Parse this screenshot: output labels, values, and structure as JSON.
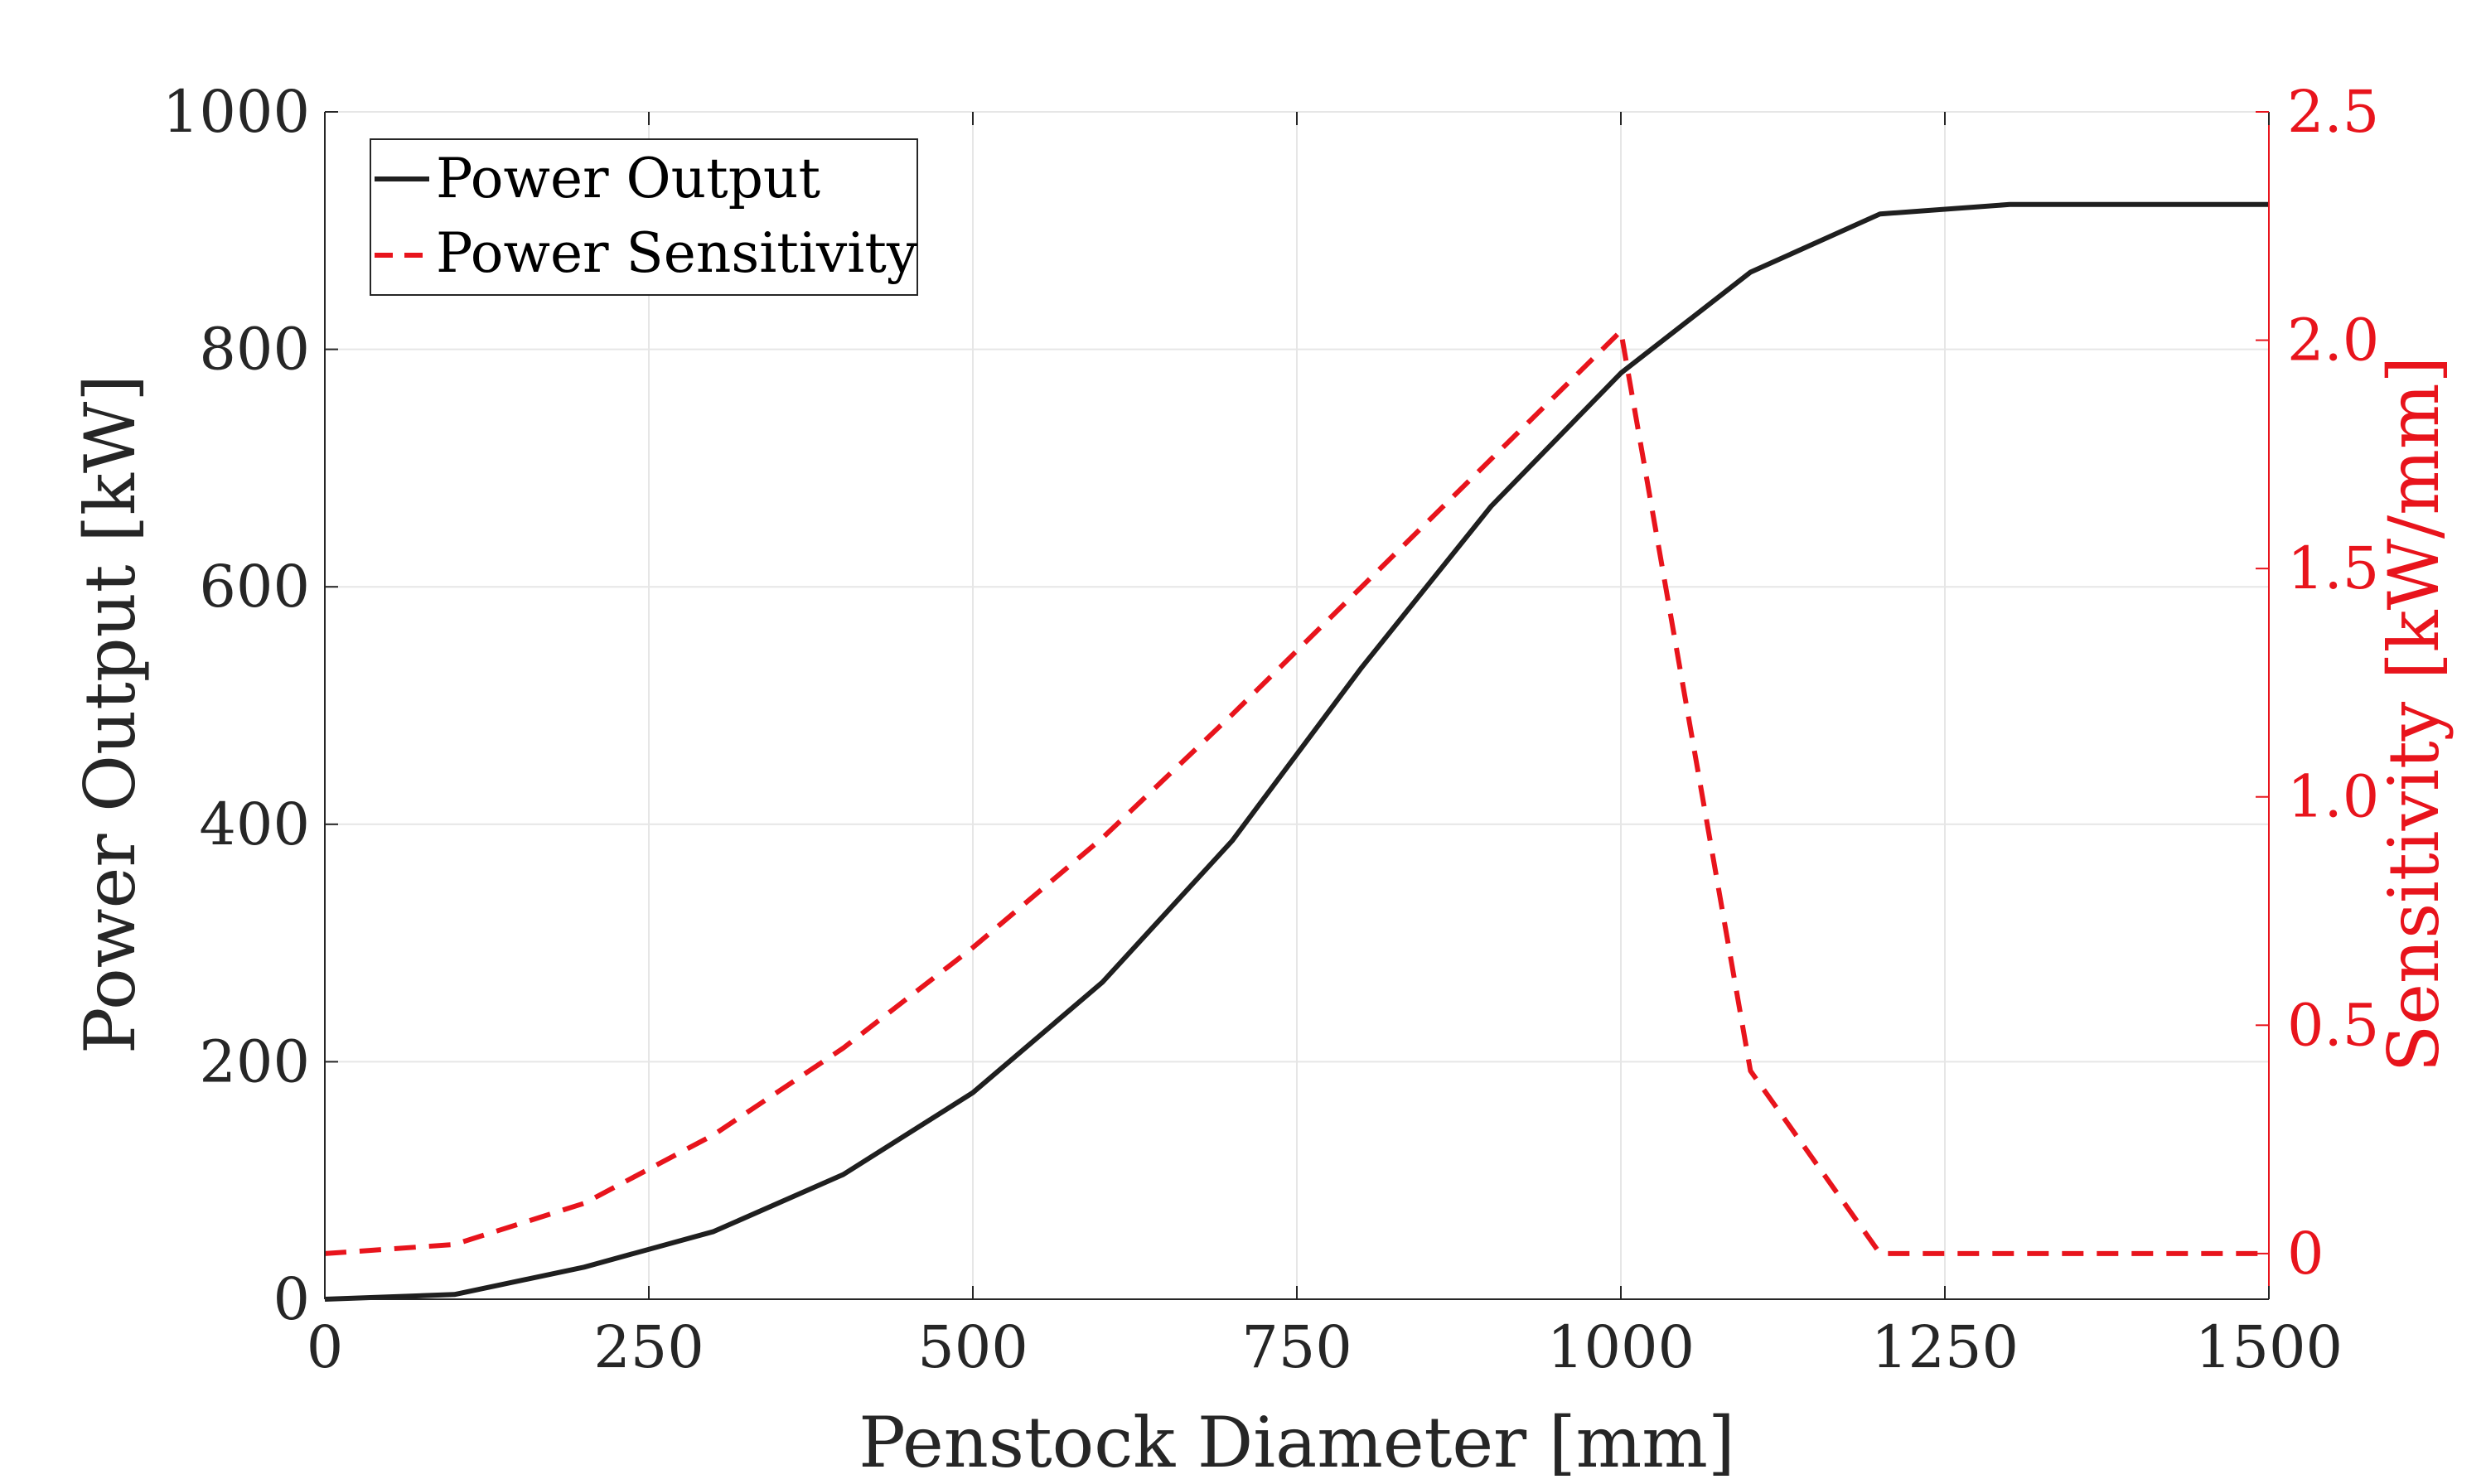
{
  "chart_data": {
    "type": "line",
    "x_label": "Penstock Diameter [mm]",
    "y_left_label": "Power Output [kW]",
    "y_right_label": "Sensitivity [kW/mm]",
    "x_range": [
      0,
      1500
    ],
    "y_left_range": [
      0,
      1000
    ],
    "y_right_range": [
      -0.1,
      2.5
    ],
    "x_ticks": [
      "0",
      "250",
      "500",
      "750",
      "1000",
      "1250",
      "1500"
    ],
    "x_tick_values": [
      0,
      250,
      500,
      750,
      1000,
      1250,
      1500
    ],
    "y_left_ticks": [
      "0",
      "200",
      "400",
      "600",
      "800",
      "1000"
    ],
    "y_left_tick_values": [
      0,
      200,
      400,
      600,
      800,
      1000
    ],
    "y_right_ticks": [
      "0",
      "0.5",
      "1.0",
      "1.5",
      "2.0",
      "2.5"
    ],
    "y_right_tick_values": [
      0,
      0.5,
      1.0,
      1.5,
      2.0,
      2.5
    ],
    "grid": true,
    "legend_position": "top-left",
    "colors": {
      "left_axis": "#262626",
      "right_axis": "#e8141c",
      "grid": "#e6e6e6"
    },
    "series": [
      {
        "name": "Power Output",
        "axis": "left",
        "style": "solid",
        "color": "#1f1f1f",
        "x": [
          0,
          100,
          200,
          300,
          400,
          500,
          600,
          700,
          800,
          900,
          1000,
          1100,
          1200,
          1300,
          1400,
          1500
        ],
        "y": [
          0,
          4,
          27,
          57,
          105,
          174,
          267,
          386,
          532,
          668,
          780,
          865,
          914,
          922,
          922,
          922
        ]
      },
      {
        "name": "Power Sensitivity",
        "axis": "right",
        "style": "dashed",
        "color": "#e8141c",
        "x": [
          0,
          100,
          200,
          300,
          400,
          500,
          600,
          700,
          800,
          900,
          1000,
          1100,
          1200,
          1300,
          1400,
          1500
        ],
        "y": [
          0.0,
          0.02,
          0.11,
          0.26,
          0.45,
          0.67,
          0.91,
          1.18,
          1.46,
          1.74,
          2.02,
          0.4,
          0.0,
          0.0,
          0.0,
          0.0
        ]
      }
    ]
  }
}
